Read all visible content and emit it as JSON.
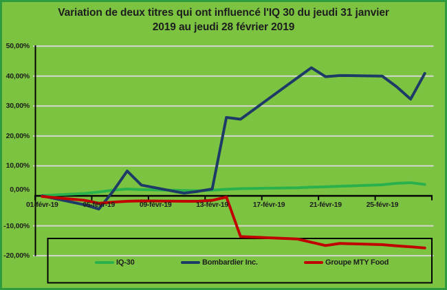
{
  "title_line1": "Variation de deux titres qui ont influencé l'IQ 30 du jeudi 31 janvier",
  "title_line2": "2019 au jeudi 28 février 2019",
  "chart_data": {
    "type": "line",
    "title": "Variation de deux titres qui ont influencé l'IQ 30 du jeudi 31 janvier 2019 au jeudi 28 février 2019",
    "x": [
      "01-févr-19",
      "04-févr-19",
      "05-févr-19",
      "06-févr-19",
      "07-févr-19",
      "08-févr-19",
      "11-févr-19",
      "12-févr-19",
      "13-févr-19",
      "14-févr-19",
      "15-févr-19",
      "19-févr-19",
      "20-févr-19",
      "21-févr-19",
      "22-févr-19",
      "25-févr-19",
      "26-févr-19",
      "27-févr-19",
      "28-févr-19"
    ],
    "series": [
      {
        "name": "IQ-30",
        "color": "#2bb14c",
        "values": [
          0.1,
          0.8,
          1.3,
          1.9,
          2.3,
          2.1,
          1.8,
          1.7,
          1.9,
          2.2,
          2.4,
          2.7,
          2.9,
          3.0,
          3.2,
          3.7,
          4.2,
          4.4,
          3.8
        ]
      },
      {
        "name": "Bombardier Inc.",
        "color": "#1e3a66",
        "values": [
          0.0,
          -3.0,
          -4.4,
          1.5,
          8.3,
          3.6,
          0.9,
          1.5,
          2.3,
          26.2,
          25.6,
          39.4,
          42.8,
          39.8,
          40.2,
          40.0,
          36.5,
          32.3,
          40.9
        ]
      },
      {
        "name": "Groupe MTY Food",
        "color": "#c00000",
        "values": [
          -0.2,
          -1.5,
          -2.5,
          -2.1,
          -1.8,
          -1.7,
          -1.8,
          -1.8,
          -1.5,
          -0.4,
          -13.6,
          -14.4,
          -15.5,
          -16.6,
          -15.9,
          -16.3,
          -16.7,
          -17.0,
          -17.4
        ]
      }
    ],
    "x_axis": {
      "tick_labels": [
        "01-févr-19",
        "05-févr-19",
        "09-févr-19",
        "13-févr-19",
        "17-févr-19",
        "21-févr-19",
        "25-févr-19"
      ],
      "range": [
        "01-févr-19",
        "01-mars-19"
      ]
    },
    "y_axis": {
      "tick_labels": [
        "50,00%",
        "40,00%",
        "30,00%",
        "20,00%",
        "10,00%",
        "0,00%",
        "-10,00%",
        "-20,00%"
      ],
      "tick_values": [
        50,
        40,
        30,
        20,
        10,
        0,
        -10,
        -20
      ],
      "ylim": [
        -20,
        50
      ],
      "unit": "percent"
    },
    "legend": {
      "position": "bottom",
      "entries": [
        "IQ-30",
        "Bombardier Inc.",
        "Groupe MTY Food"
      ]
    },
    "gridlines": true,
    "colors": {
      "background": "#7cc342",
      "frame_border": "#2e9c3e",
      "gridline": "#d4d6d0",
      "axis": "#000000",
      "text": "#1d1d1d",
      "legend_border": "#000000"
    }
  }
}
